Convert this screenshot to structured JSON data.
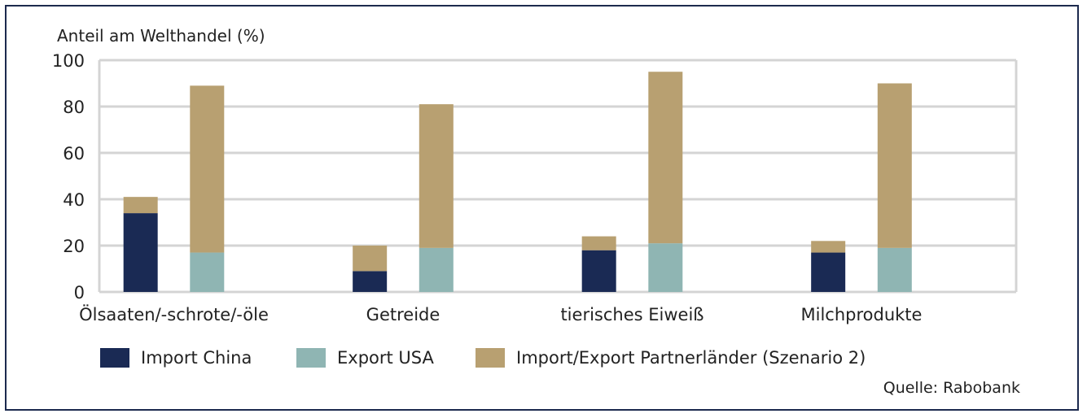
{
  "chart_data": {
    "type": "bar",
    "ylabel": "Anteil am Welthandel (%)",
    "ylim": [
      0,
      100
    ],
    "yticks": [
      0,
      20,
      40,
      60,
      80,
      100
    ],
    "grid": true,
    "categories": [
      "Ölsaaten/-schrote/-öle",
      "Getreide",
      "tierisches Eiweiß",
      "Milchprodukte"
    ],
    "bars_per_category": [
      {
        "name": "Import China",
        "stack": [
          {
            "series": "Import China",
            "values": [
              34,
              9,
              18,
              17
            ]
          },
          {
            "series": "Import/Export Partnerländer (Szenario 2)",
            "values": [
              7,
              11,
              6,
              5
            ]
          }
        ]
      },
      {
        "name": "Export USA",
        "stack": [
          {
            "series": "Export USA",
            "values": [
              17,
              19,
              21,
              19
            ]
          },
          {
            "series": "Import/Export Partnerländer (Szenario 2)",
            "values": [
              72,
              62,
              74,
              71
            ]
          }
        ]
      }
    ],
    "legend_position": "bottom",
    "legend": [
      {
        "label": "Import China",
        "color": "#1a2a54"
      },
      {
        "label": "Export USA",
        "color": "#8fb5b3"
      },
      {
        "label": "Import/Export Partnerländer (Szenario 2)",
        "color": "#b8a071"
      }
    ],
    "source": "Quelle: Rabobank"
  },
  "colors": {
    "import_china": "#1a2a54",
    "export_usa": "#8fb5b3",
    "partner": "#b8a071",
    "grid": "#d4d4d4",
    "frame": "#1c2a4e"
  }
}
